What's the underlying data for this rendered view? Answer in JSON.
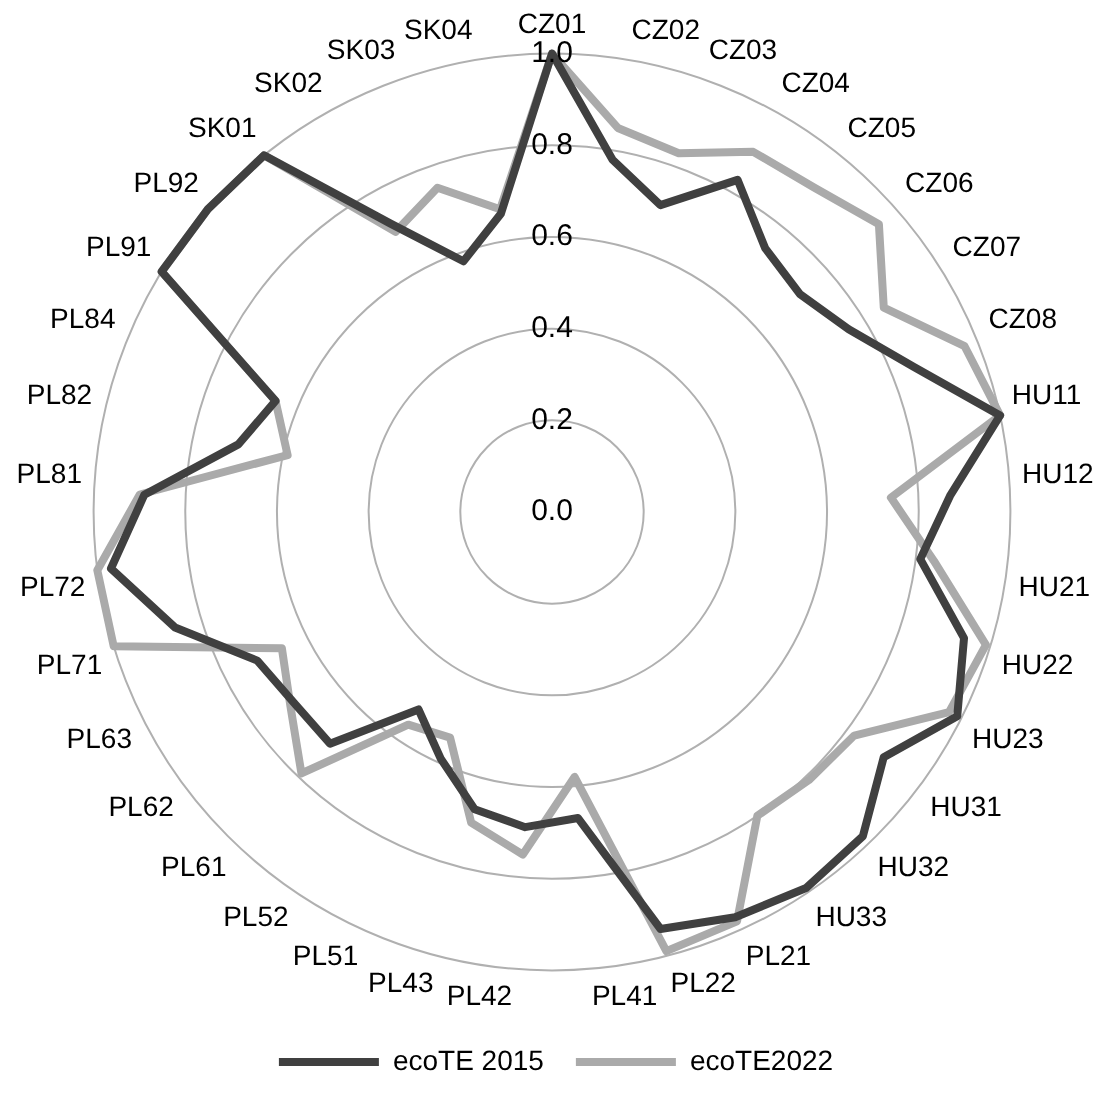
{
  "chart_data": {
    "type": "radar",
    "categories": [
      "CZ01",
      "CZ02",
      "CZ03",
      "CZ04",
      "CZ05",
      "CZ06",
      "CZ07",
      "CZ08",
      "HU11",
      "HU12",
      "HU21",
      "HU22",
      "HU23",
      "HU31",
      "HU32",
      "HU33",
      "PL21",
      "PL22",
      "PL41",
      "PL42",
      "PL43",
      "PL51",
      "PL52",
      "PL61",
      "PL62",
      "PL63",
      "PL71",
      "PL72",
      "PL81",
      "PL82",
      "PL84",
      "PL91",
      "PL92",
      "SK01",
      "SK02",
      "SK03",
      "SK04"
    ],
    "series": [
      {
        "name": "ecoTE 2015",
        "color": "#404040",
        "values": [
          1.0,
          0.78,
          0.71,
          0.83,
          0.74,
          0.72,
          0.76,
          0.85,
          1.0,
          0.87,
          0.81,
          0.94,
          0.99,
          0.9,
          0.98,
          0.99,
          0.97,
          0.94,
          0.67,
          0.69,
          0.67,
          0.59,
          0.52,
          0.7,
          0.7,
          0.72,
          0.86,
          0.97,
          0.89,
          0.7,
          0.65,
          1.0,
          1.0,
          1.0,
          0.72,
          0.58,
          0.66
        ]
      },
      {
        "name": "ecoTE2022",
        "color": "#aaaaaa",
        "values": [
          1.0,
          0.85,
          0.83,
          0.9,
          0.91,
          0.95,
          0.85,
          0.97,
          1.0,
          0.74,
          0.84,
          0.99,
          0.97,
          0.82,
          0.81,
          0.8,
          0.98,
          0.99,
          0.58,
          0.75,
          0.7,
          0.54,
          0.56,
          0.79,
          0.71,
          0.66,
          1.0,
          1.0,
          0.9,
          0.59,
          0.65,
          1.0,
          1.0,
          1.0,
          0.7,
          0.75,
          0.67
        ]
      }
    ],
    "ylim": [
      0,
      1
    ],
    "yticks": [
      {
        "value": 0,
        "label": "0.0"
      },
      0.2,
      0.4,
      0.6,
      0.8,
      {
        "value": 1,
        "label": "1.0"
      }
    ],
    "grid": true,
    "legend": "bottom",
    "marker": "none",
    "line_style": "solid"
  }
}
